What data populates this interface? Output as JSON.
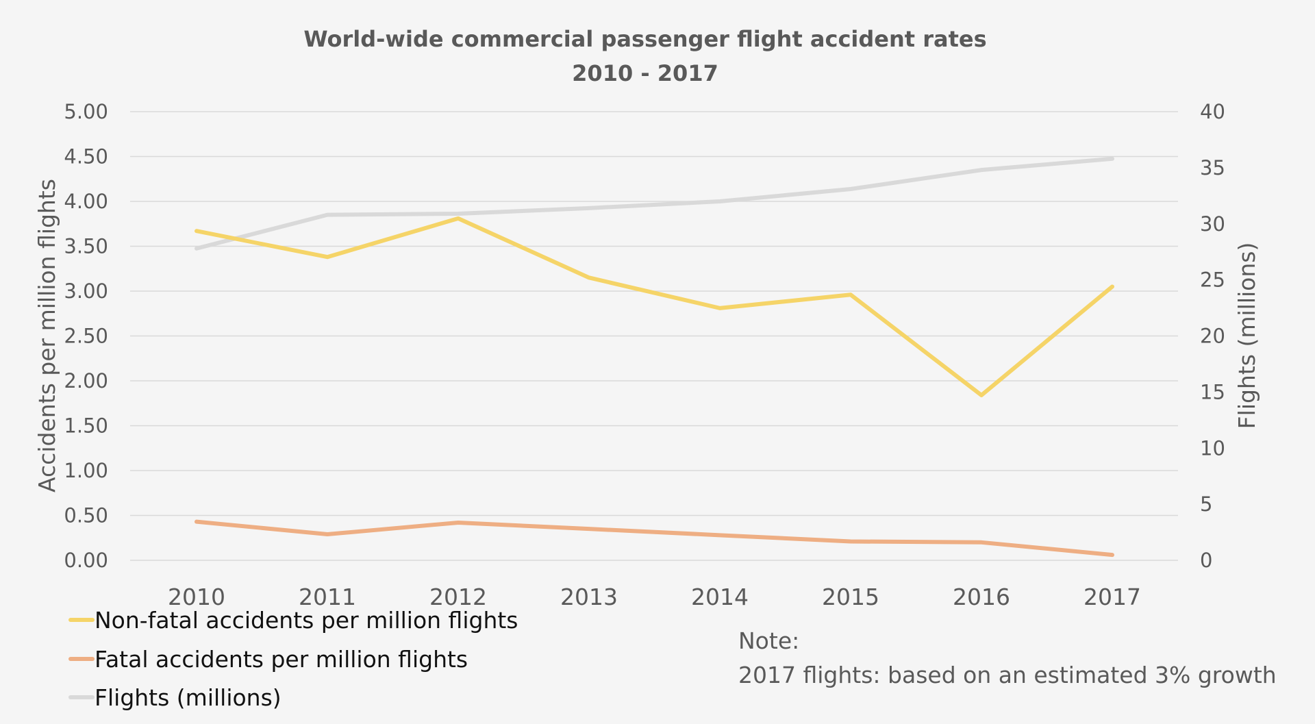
{
  "chart_data": {
    "type": "line",
    "title": "World-wide commercial passenger flight accident rates",
    "subtitle": "2010 - 2017",
    "categories": [
      "2010",
      "2011",
      "2012",
      "2013",
      "2014",
      "2015",
      "2016",
      "2017"
    ],
    "y_left": {
      "label": "Accidents per million flights",
      "ylim": [
        0,
        5
      ],
      "ticks": [
        "0.00",
        "0.50",
        "1.00",
        "1.50",
        "2.00",
        "2.50",
        "3.00",
        "3.50",
        "4.00",
        "4.50",
        "5.00"
      ]
    },
    "y_right": {
      "label": "Flights (millions)",
      "ylim": [
        0,
        40
      ],
      "ticks": [
        "0",
        "5",
        "10",
        "15",
        "20",
        "25",
        "30",
        "35",
        "40"
      ]
    },
    "series": [
      {
        "name": "Non-fatal accidents per million flights",
        "axis": "left",
        "color": "#f5d468",
        "values": [
          3.67,
          3.38,
          3.81,
          3.15,
          2.81,
          2.96,
          1.84,
          3.05
        ]
      },
      {
        "name": "Fatal accidents per million flights",
        "axis": "left",
        "color": "#eeae83",
        "values": [
          0.43,
          0.29,
          0.42,
          0.35,
          0.28,
          0.21,
          0.2,
          0.06
        ]
      },
      {
        "name": "Flights (millions)",
        "axis": "right",
        "color": "#d9d9d9",
        "values": [
          27.8,
          30.8,
          30.9,
          31.4,
          32.0,
          33.1,
          34.8,
          35.8
        ]
      }
    ],
    "grid": true,
    "legend_position": "bottom-left"
  },
  "note": {
    "heading": "Note:",
    "text": "2017 flights: based on an estimated 3% growth"
  }
}
